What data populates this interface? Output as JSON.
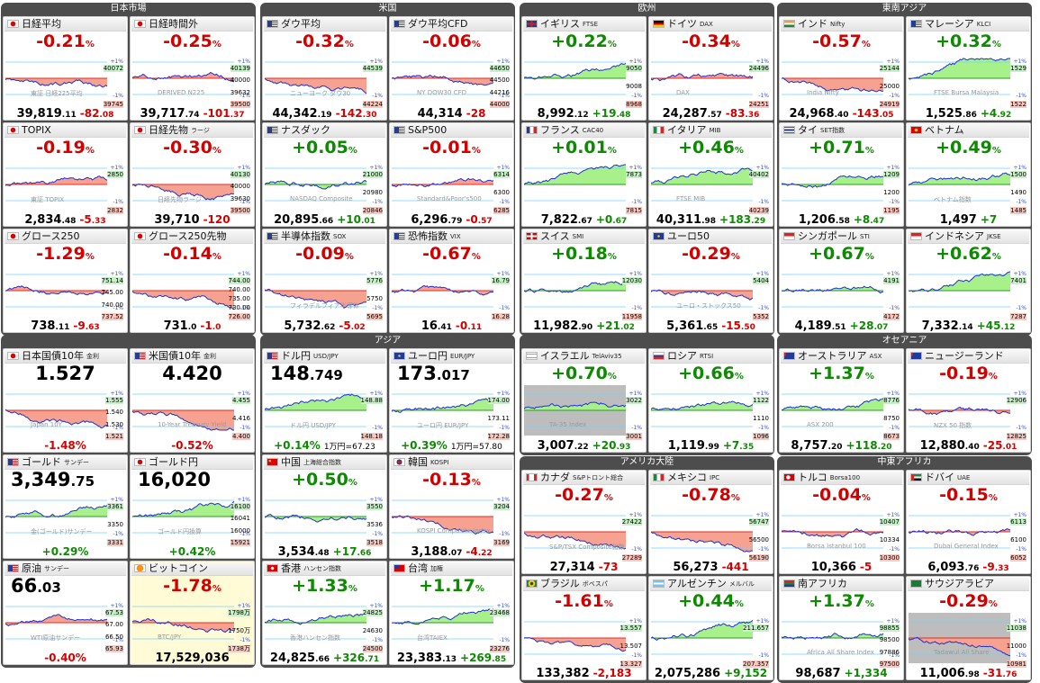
{
  "groups": [
    {
      "title": "日本市場",
      "cards": [
        {
          "name": "日経平均",
          "dir": "down",
          "pct": "-0.21",
          "labels": [
            "40072",
            "39745"
          ],
          "bottom": {
            "value": "39,819",
            "decimal": ".11",
            "change": "-82",
            "change_decimal": ".08"
          },
          "watermark": "東証 日経225平均"
        },
        {
          "name": "日経時間外",
          "dir": "down",
          "pct": "-0.25",
          "labels": [
            "40139",
            "40000",
            "39632",
            "39500"
          ],
          "bottom": {
            "value": "39,717",
            "decimal": ".74",
            "change": "-101",
            "change_decimal": ".37"
          },
          "watermark": "DERIVED N225"
        },
        {
          "name": "TOPIX",
          "dir": "down",
          "pct": "-0.19",
          "labels": [
            "2850",
            "2832"
          ],
          "bottom": {
            "value": "2,834",
            "decimal": ".48",
            "change": "-5",
            "change_decimal": ".33"
          },
          "watermark": "東証 TOPIX"
        },
        {
          "name": "日経先物",
          "sub": "ラージ",
          "dir": "down",
          "pct": "-0.30",
          "labels": [
            "40130",
            "40000",
            "39630",
            "39500"
          ],
          "bottom": {
            "value": "39,710",
            "decimal": "",
            "change": "-120",
            "change_decimal": ""
          },
          "watermark": "日経先物ラージ"
        },
        {
          "name": "グロース250",
          "dir": "down",
          "pct": "-1.29",
          "labels": [
            "751.14",
            "745.00",
            "740.00",
            "737.52"
          ],
          "bottom": {
            "value": "738",
            "decimal": ".11",
            "change": "-9",
            "change_decimal": ".63"
          }
        },
        {
          "name": "グロース250先物",
          "dir": "down",
          "pct": "-0.14",
          "labels": [
            "744.00",
            "740.00",
            "735.00",
            "730.00",
            "726.00"
          ],
          "bottom": {
            "value": "731",
            "decimal": ".0",
            "change": "-1",
            "change_decimal": ".0"
          }
        }
      ]
    },
    {
      "title": "米国",
      "cards": [
        {
          "name": "ダウ平均",
          "dir": "down",
          "pct": "-0.32",
          "labels": [
            "44539",
            "44224"
          ],
          "bottom": {
            "value": "44,342",
            "decimal": ".19",
            "change": "-142",
            "change_decimal": ".30"
          },
          "watermark": "ニューヨーク ダウ30"
        },
        {
          "name": "ダウ平均CFD",
          "dir": "down",
          "pct": "-0.06",
          "labels": [
            "44650",
            "44500",
            "44216",
            "44000"
          ],
          "bottom": {
            "value": "44,314",
            "decimal": "",
            "change": "-28",
            "change_decimal": ""
          },
          "watermark": "NY DOW30 CFD"
        },
        {
          "name": "ナスダック",
          "dir": "up",
          "pct": "+0.05",
          "labels": [
            "21000",
            "20980",
            "20846"
          ],
          "bottom": {
            "value": "20,895",
            "decimal": ".66",
            "change": "+10",
            "change_decimal": ".01"
          },
          "watermark": "NASDAQ Composite"
        },
        {
          "name": "S&P500",
          "dir": "down",
          "pct": "-0.01",
          "labels": [
            "6314",
            "6300",
            "6285"
          ],
          "bottom": {
            "value": "6,296",
            "decimal": ".79",
            "change": "-0",
            "change_decimal": ".57"
          },
          "watermark": "Standard&Poor's500"
        },
        {
          "name": "半導体指数",
          "sub": "SOX",
          "dir": "down",
          "pct": "-0.09",
          "labels": [
            "5776",
            "5750",
            "5695"
          ],
          "bottom": {
            "value": "5,732",
            "decimal": ".62",
            "change": "-5",
            "change_decimal": ".02"
          },
          "watermark": "フィラデルフィア半導体"
        },
        {
          "name": "恐怖指数",
          "sub": "VIX",
          "dir": "down",
          "pct": "-0.67",
          "labels": [
            "16.79",
            "16.28"
          ],
          "bottom": {
            "value": "16",
            "decimal": ".41",
            "change": "-0",
            "change_decimal": ".11"
          }
        }
      ]
    },
    {
      "title": "欧州",
      "cards": [
        {
          "name": "イギリス",
          "sub": "FTSE",
          "dir": "up",
          "pct": "+0.22",
          "labels": [
            "9050",
            "9008",
            "8968"
          ],
          "bottom": {
            "value": "8,992",
            "decimal": ".12",
            "change": "+19",
            "change_decimal": ".48"
          }
        },
        {
          "name": "ドイツ",
          "sub": "DAX",
          "dir": "down",
          "pct": "-0.34",
          "labels": [
            "24496",
            "24251"
          ],
          "bottom": {
            "value": "24,287",
            "decimal": ".57",
            "change": "-83",
            "change_decimal": ".36"
          },
          "watermark": "DAX"
        },
        {
          "name": "フランス",
          "sub": "CAC40",
          "dir": "up",
          "pct": "+0.01",
          "labels": [
            "7873",
            "7815"
          ],
          "bottom": {
            "value": "7,822",
            "decimal": ".67",
            "change": "+0",
            "change_decimal": ".67"
          }
        },
        {
          "name": "イタリア",
          "sub": "MIB",
          "dir": "up",
          "pct": "+0.46",
          "labels": [
            "40402",
            "40239"
          ],
          "bottom": {
            "value": "40,311",
            "decimal": ".98",
            "change": "+183",
            "change_decimal": ".29"
          },
          "watermark": "FTSE MIB"
        },
        {
          "name": "スイス",
          "sub": "SMI",
          "dir": "up",
          "pct": "+0.18",
          "labels": [
            "12030",
            "11958"
          ],
          "bottom": {
            "value": "11,982",
            "decimal": ".90",
            "change": "+21",
            "change_decimal": ".02"
          }
        },
        {
          "name": "ユーロ50",
          "dir": "down",
          "pct": "-0.29",
          "labels": [
            "5404",
            "5352"
          ],
          "bottom": {
            "value": "5,361",
            "decimal": ".65",
            "change": "-15",
            "change_decimal": ".50"
          },
          "watermark": "ユーロ・ストックス50"
        }
      ]
    },
    {
      "title": "東南アジア",
      "cards": [
        {
          "name": "インド",
          "sub": "Nifty",
          "dir": "down",
          "pct": "-0.57",
          "labels": [
            "25144",
            "25000",
            "24919"
          ],
          "bottom": {
            "value": "24,968",
            "decimal": ".40",
            "change": "-143",
            "change_decimal": ".05"
          },
          "watermark": "India Nifty"
        },
        {
          "name": "マレーシア",
          "sub": "KLCI",
          "dir": "up",
          "pct": "+0.32",
          "labels": [
            "1529",
            "1522"
          ],
          "bottom": {
            "value": "1,525",
            "decimal": ".86",
            "change": "+4",
            "change_decimal": ".92"
          },
          "watermark": "FTSE Bursa Malaysia"
        },
        {
          "name": "タイ",
          "sub": "SET指数",
          "dir": "up",
          "pct": "+0.71",
          "labels": [
            "1209",
            "1200",
            "1195"
          ],
          "bottom": {
            "value": "1,206",
            "decimal": ".58",
            "change": "+8",
            "change_decimal": ".47"
          }
        },
        {
          "name": "ベトナム",
          "dir": "up",
          "pct": "+0.49",
          "labels": [
            "1500",
            "1490",
            "1485"
          ],
          "bottom": {
            "value": "1,497",
            "decimal": "",
            "change": "+7",
            "change_decimal": ""
          },
          "watermark": "ベトナム指数"
        },
        {
          "name": "シンガポール",
          "sub": "STI",
          "dir": "up",
          "pct": "+0.67",
          "labels": [
            "4191",
            "4172"
          ],
          "bottom": {
            "value": "4,189",
            "decimal": ".51",
            "change": "+28",
            "change_decimal": ".07"
          }
        },
        {
          "name": "インドネシア",
          "sub": "JKSE",
          "dir": "up",
          "pct": "+0.62",
          "labels": [
            "7401",
            "7287"
          ],
          "bottom": {
            "value": "7,332",
            "decimal": ".14",
            "change": "+45",
            "change_decimal": ".12"
          }
        }
      ]
    },
    {
      "title": "",
      "cards": [
        {
          "name": "日本国債10年",
          "sub": "金利",
          "dir": "down",
          "big": "1.527",
          "labels": [
            "1.555",
            "1.540",
            "1.530",
            "1.521"
          ],
          "bottom_pct": "-1.48",
          "watermark": "Japan 10Y"
        },
        {
          "name": "米国債10年",
          "sub": "金利",
          "dir": "down",
          "big": "4.420",
          "labels": [
            "4.455",
            "4.416",
            "4.400"
          ],
          "bottom_pct": "-0.52",
          "watermark": "10-Year Treasury Yield"
        },
        {
          "name": "ゴールド",
          "sub": "サンデー",
          "dir": "up",
          "big": "3,349",
          "big_decimal": ".75",
          "labels": [
            "3361",
            "3350",
            "3331"
          ],
          "bottom_pct": "+0.29",
          "watermark": "金(ゴールド)サンデー"
        },
        {
          "name": "ゴールド円",
          "dir": "up",
          "big": "16,020",
          "labels": [
            "16100",
            "16041",
            "16000",
            "15921"
          ],
          "bottom_pct": "+0.42",
          "watermark": "ゴールド円換算"
        },
        {
          "name": "原油",
          "sub": "サンデー",
          "dir": "down",
          "big": "66",
          "big_decimal": ".03",
          "labels": [
            "67.53",
            "67.00",
            "66.50",
            "65.93"
          ],
          "bottom_pct": "-0.40",
          "watermark": "WTI原油サンデー"
        },
        {
          "name": "ビットコイン",
          "dir": "down",
          "pct": "-1.78",
          "labels": [
            "1798万",
            "1750万",
            "1738万"
          ],
          "bottom": {
            "value": "17,529,036",
            "decimal": "",
            "change": "",
            "change_decimal": ""
          },
          "watermark": "BTC/JPY"
        }
      ]
    },
    {
      "title": "アジア",
      "cards": [
        {
          "name": "ドル円",
          "sub": "USD/JPY",
          "dir": "up",
          "big": "148",
          "big_decimal": ".749",
          "labels": [
            "148.88",
            "148.18"
          ],
          "bottom_pct": "+0.14",
          "bottom_sub": "1万円=67.23",
          "watermark": "ドル円 USD/JPY"
        },
        {
          "name": "ユーロ円",
          "sub": "EUR/JPY",
          "dir": "up",
          "big": "173",
          "big_decimal": ".017",
          "labels": [
            "174.00",
            "173.11",
            "172.28"
          ],
          "bottom_pct": "+0.39",
          "bottom_sub": "1万円=57.80",
          "watermark": "ユーロ円 EUR/JPY"
        },
        {
          "name": "中国",
          "sub": "上海総合指数",
          "dir": "up",
          "pct": "+0.50",
          "labels": [
            "3550",
            "3536",
            "3518"
          ],
          "bottom": {
            "value": "3,534",
            "decimal": ".48",
            "change": "+17",
            "change_decimal": ".66"
          }
        },
        {
          "name": "韓国",
          "sub": "KOSPI",
          "dir": "down",
          "pct": "-0.13",
          "labels": [
            "3204",
            "3169"
          ],
          "bottom": {
            "value": "3,188",
            "decimal": ".07",
            "change": "-4",
            "change_decimal": ".22"
          },
          "watermark": "KOSPI Composite Index"
        },
        {
          "name": "香港",
          "sub": "ハンセン指数",
          "dir": "up",
          "pct": "+1.33",
          "labels": [
            "24825",
            "24630",
            "24500"
          ],
          "bottom": {
            "value": "24,825",
            "decimal": ".66",
            "change": "+326",
            "change_decimal": ".71"
          },
          "watermark": "香港ハンセン指数"
        },
        {
          "name": "台湾",
          "sub": "加権",
          "dir": "up",
          "pct": "+1.17",
          "labels": [
            "23468",
            "23276"
          ],
          "bottom": {
            "value": "23,383",
            "decimal": ".13",
            "change": "+269",
            "change_decimal": ".85"
          },
          "watermark": "台湾TAIEX"
        }
      ]
    },
    {
      "title": "",
      "cards": [
        {
          "name": "イスラエル",
          "sub": "TelAviv35",
          "dir": "up",
          "pct": "+0.70",
          "labels": [
            "3022",
            "3001"
          ],
          "bottom": {
            "value": "3,007",
            "decimal": ".22",
            "change": "+20",
            "change_decimal": ".93"
          },
          "watermark": "TA-35 Index",
          "shade": true
        },
        {
          "name": "ロシア",
          "sub": "RTSI",
          "dir": "up",
          "pct": "+0.66",
          "labels": [
            "1122",
            "1110",
            "1096"
          ],
          "bottom": {
            "value": "1,119",
            "decimal": ".99",
            "change": "+7",
            "change_decimal": ".35"
          }
        }
      ]
    },
    {
      "title": "アメリカ大陸",
      "cards": [
        {
          "name": "カナダ",
          "sub": "S&Pトロント総合",
          "dir": "down",
          "pct": "-0.27",
          "labels": [
            "27422",
            "27289"
          ],
          "bottom": {
            "value": "27,314",
            "decimal": "",
            "change": "-73",
            "change_decimal": ""
          },
          "watermark": "S&P/TSX Composite指数"
        },
        {
          "name": "メキシコ",
          "sub": "IPC",
          "dir": "down",
          "pct": "-0.78",
          "labels": [
            "56747",
            "56500",
            "56190"
          ],
          "bottom": {
            "value": "56,273",
            "decimal": "",
            "change": "-441",
            "change_decimal": ""
          }
        },
        {
          "name": "ブラジル",
          "sub": "ボベスパ",
          "dir": "down",
          "pct": "-1.61",
          "labels": [
            "13.557",
            "13.507",
            "13.327"
          ],
          "bottom": {
            "value": "133,382",
            "decimal": "",
            "change": "-2,183",
            "change_decimal": ""
          }
        },
        {
          "name": "アルゼンチン",
          "sub": "メルバル",
          "dir": "up",
          "pct": "+0.44",
          "labels": [
            "211.657",
            "207.357"
          ],
          "bottom": {
            "value": "2,075,286",
            "decimal": "",
            "change": "+9,152",
            "change_decimal": ""
          }
        }
      ]
    },
    {
      "title": "オセアニア",
      "cards": [
        {
          "name": "オーストラリア",
          "sub": "ASX",
          "dir": "up",
          "pct": "+1.37",
          "labels": [
            "8776",
            "8750",
            "8673"
          ],
          "bottom": {
            "value": "8,757",
            "decimal": ".20",
            "change": "+118",
            "change_decimal": ".20"
          },
          "watermark": "ASX 200"
        },
        {
          "name": "ニュージーランド",
          "dir": "down",
          "pct": "-0.19",
          "labels": [
            "12906",
            "12825"
          ],
          "bottom": {
            "value": "12,880",
            "decimal": ".40",
            "change": "-25",
            "change_decimal": ".01"
          },
          "watermark": "NZX 50 指数"
        }
      ]
    },
    {
      "title": "中東アフリカ",
      "cards": [
        {
          "name": "トルコ",
          "sub": "Borsa100",
          "dir": "down",
          "pct": "-0.04",
          "labels": [
            "10407",
            "10334",
            "10300"
          ],
          "bottom": {
            "value": "10,366",
            "decimal": "",
            "change": "-5",
            "change_decimal": ""
          },
          "watermark": "Borsa Istanbul 100"
        },
        {
          "name": "ドバイ",
          "sub": "UAE",
          "dir": "down",
          "pct": "-0.15",
          "labels": [
            "6113",
            "6100",
            "6052"
          ],
          "bottom": {
            "value": "6,093",
            "decimal": ".76",
            "change": "-9",
            "change_decimal": ".33"
          },
          "watermark": "Dubai General Index"
        },
        {
          "name": "南アフリカ",
          "dir": "up",
          "pct": "+1.37",
          "labels": [
            "98855",
            "98500",
            "97886",
            "97500"
          ],
          "bottom": {
            "value": "98,687",
            "decimal": "",
            "change": "+1,334",
            "change_decimal": ""
          },
          "watermark": "Africa All Share Index"
        },
        {
          "name": "サウジアラビア",
          "dir": "down",
          "pct": "-0.29",
          "labels": [
            "11038",
            "11000",
            "10981"
          ],
          "bottom": {
            "value": "11,006",
            "decimal": ".98",
            "change": "-31",
            "change_decimal": ".76"
          },
          "watermark": "Tadawul All Share",
          "shade": true
        }
      ]
    }
  ],
  "pct_markers": {
    "plus": "+1%",
    "minus": "-1%"
  },
  "pct_unit": "%",
  "colors": {
    "up": "#0c8a00",
    "down": "#d40000",
    "up_fill": "#a8f08a",
    "down_fill": "#f7a190",
    "line": "#1f2fd6",
    "frame": "#4d4d4d"
  },
  "flags": {
    "日経平均": "jp",
    "日経時間外": "jp",
    "TOPIX": "jp",
    "日経先物": "jp",
    "グロース250": "jp",
    "グロース250先物": "jp",
    "日本国債10年": "jp",
    "ゴールド円": "jp",
    "ダウ平均": "us",
    "ダウ平均CFD": "us",
    "ナスダック": "us",
    "S&P500": "us",
    "半導体指数": "us",
    "恐怖指数": "us",
    "米国債10年": "us",
    "ゴールド": "us",
    "原油": "us",
    "ドル円": "us",
    "イギリス": "gb",
    "ドイツ": "de",
    "フランス": "fr",
    "イタリア": "it",
    "スイス": "ch",
    "ユーロ50": "eu",
    "ユーロ円": "eu",
    "インド": "in",
    "マレーシア": "my",
    "タイ": "th",
    "ベトナム": "vn",
    "シンガポール": "sg",
    "インドネシア": "id",
    "ビットコイン": "btc",
    "中国": "cn",
    "韓国": "kr",
    "香港": "hk",
    "台湾": "tw",
    "イスラエル": "il",
    "ロシア": "ru",
    "カナダ": "ca",
    "メキシコ": "mx",
    "ブラジル": "br",
    "アルゼンチン": "ar",
    "オーストラリア": "au",
    "ニュージーランド": "nz",
    "トルコ": "tr",
    "ドバイ": "ae",
    "南アフリカ": "za",
    "サウジアラビア": "sa"
  }
}
